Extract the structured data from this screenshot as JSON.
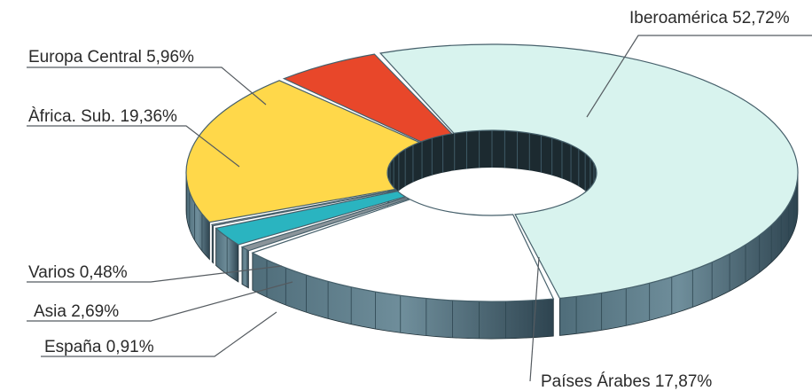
{
  "chart_data": {
    "type": "pie",
    "variant": "3d-donut",
    "title": "",
    "slices": [
      {
        "label": "Iberoamérica",
        "value": 52.72,
        "display": "Iberoamérica 52,72%",
        "color": "#d8f3ee"
      },
      {
        "label": "Países Árabes",
        "value": 17.87,
        "display": "Países Árabes 17,87%",
        "color": "#ffffff"
      },
      {
        "label": "España",
        "value": 0.91,
        "display": "España 0,91%",
        "color": "#8a949a"
      },
      {
        "label": "Asia",
        "value": 2.69,
        "display": "Asia  2,69%",
        "color": "#2ab4c0"
      },
      {
        "label": "Varios",
        "value": 0.48,
        "display": "Varios  0,48%",
        "color": "#f2b8c8"
      },
      {
        "label": "Àfrica. Sub.",
        "value": 19.36,
        "display": "Àfrica. Sub.  19,36%",
        "color": "#ffd84a"
      },
      {
        "label": "Europa Central",
        "value": 5.96,
        "display": "Europa Central 5,96%",
        "color": "#e8472a"
      }
    ],
    "legend": "none"
  }
}
